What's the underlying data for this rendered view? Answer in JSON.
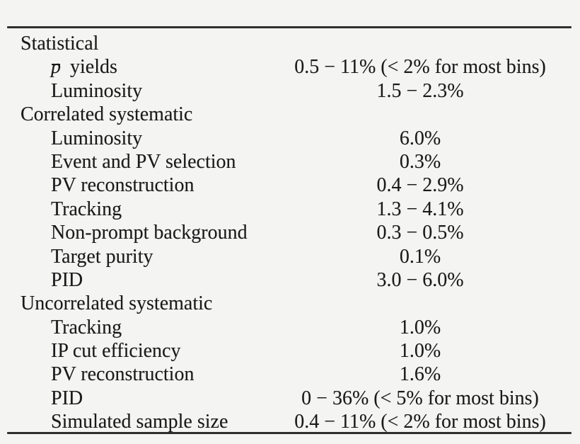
{
  "colors": {
    "background": "#f4f4f3",
    "text": "#1a1a1a",
    "rule": "#2f2f2f"
  },
  "table": {
    "rows": [
      {
        "type": "section",
        "label": "Statistical"
      },
      {
        "type": "item",
        "math": "p",
        "label": "yields",
        "value": "0.5 − 11% (< 2% for most bins)"
      },
      {
        "type": "item",
        "label": "Luminosity",
        "value": "1.5 − 2.3%"
      },
      {
        "type": "section",
        "label": "Correlated systematic"
      },
      {
        "type": "item",
        "label": "Luminosity",
        "value": "6.0%"
      },
      {
        "type": "item",
        "label": "Event and PV selection",
        "value": "0.3%"
      },
      {
        "type": "item",
        "label": "PV reconstruction",
        "value": "0.4 − 2.9%"
      },
      {
        "type": "item",
        "label": "Tracking",
        "value": "1.3 − 4.1%"
      },
      {
        "type": "item",
        "label": "Non-prompt background",
        "value": "0.3 − 0.5%"
      },
      {
        "type": "item",
        "label": "Target purity",
        "value": "0.1%"
      },
      {
        "type": "item",
        "label": "PID",
        "value": "3.0 − 6.0%"
      },
      {
        "type": "section",
        "label": "Uncorrelated systematic"
      },
      {
        "type": "item",
        "label": "Tracking",
        "value": "1.0%"
      },
      {
        "type": "item",
        "label": "IP cut efficiency",
        "value": "1.0%"
      },
      {
        "type": "item",
        "label": "PV reconstruction",
        "value": "1.6%"
      },
      {
        "type": "item",
        "label": "PID",
        "value": "0 − 36% (< 5% for most bins)"
      },
      {
        "type": "item",
        "label": "Simulated sample size",
        "value": "0.4 − 11% (< 2% for most bins)"
      }
    ]
  }
}
